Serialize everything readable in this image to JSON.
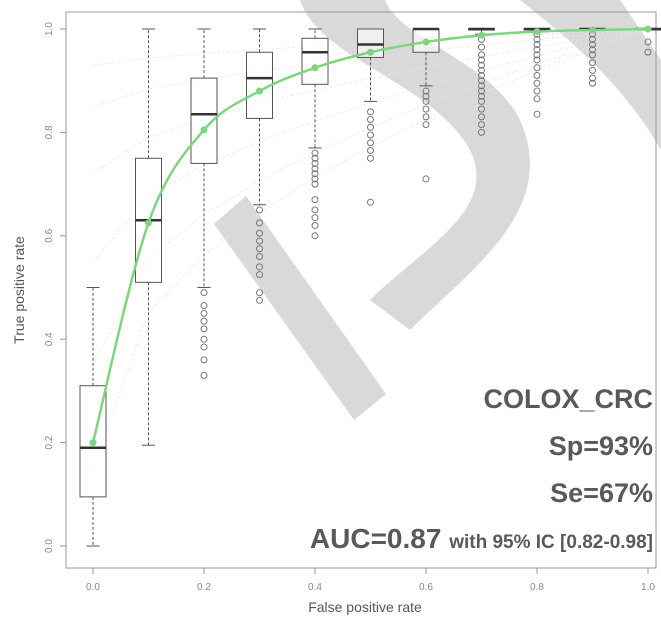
{
  "chart_data": {
    "type": "box",
    "xlabel": "False positive rate",
    "ylabel": "True positive rate",
    "xlim": [
      0,
      1
    ],
    "ylim": [
      0,
      1
    ],
    "xticks": [
      "0.0",
      "0.2",
      "0.4",
      "0.6",
      "0.8",
      "1.0"
    ],
    "yticks": [
      "0.0",
      "0.2",
      "0.4",
      "0.6",
      "0.8",
      "1.0"
    ],
    "grid": false,
    "boxes": [
      {
        "x": 0.0,
        "min": 0.0,
        "q1": 0.095,
        "median": 0.19,
        "q3": 0.31,
        "max": 0.5,
        "outliers": []
      },
      {
        "x": 0.1,
        "min": 0.195,
        "q1": 0.51,
        "median": 0.63,
        "q3": 0.75,
        "max": 1.0,
        "outliers": []
      },
      {
        "x": 0.2,
        "min": 0.5,
        "q1": 0.74,
        "median": 0.835,
        "q3": 0.905,
        "max": 1.0,
        "outliers": [
          0.49,
          0.465,
          0.45,
          0.435,
          0.42,
          0.4,
          0.385,
          0.36,
          0.33
        ]
      },
      {
        "x": 0.3,
        "min": 0.66,
        "q1": 0.827,
        "median": 0.905,
        "q3": 0.955,
        "max": 1.0,
        "outliers": [
          0.65,
          0.625,
          0.605,
          0.59,
          0.575,
          0.56,
          0.54,
          0.525,
          0.49,
          0.475
        ]
      },
      {
        "x": 0.4,
        "min": 0.77,
        "q1": 0.893,
        "median": 0.955,
        "q3": 0.982,
        "max": 1.0,
        "outliers": [
          0.76,
          0.75,
          0.74,
          0.73,
          0.72,
          0.71,
          0.7,
          0.67,
          0.65,
          0.635,
          0.62,
          0.6
        ]
      },
      {
        "x": 0.5,
        "min": 0.86,
        "q1": 0.945,
        "median": 0.97,
        "q3": 1.0,
        "max": 1.0,
        "outliers": [
          0.84,
          0.825,
          0.81,
          0.795,
          0.78,
          0.765,
          0.75,
          0.665
        ]
      },
      {
        "x": 0.6,
        "min": 0.89,
        "q1": 0.955,
        "median": 1.0,
        "q3": 1.0,
        "max": 1.0,
        "outliers": [
          0.88,
          0.87,
          0.86,
          0.845,
          0.83,
          0.815,
          0.71
        ]
      },
      {
        "x": 0.7,
        "min": 0.99,
        "q1": 1.0,
        "median": 1.0,
        "q3": 1.0,
        "max": 1.0,
        "outliers": [
          0.98,
          0.965,
          0.95,
          0.94,
          0.93,
          0.92,
          0.91,
          0.9,
          0.89,
          0.88,
          0.87,
          0.86,
          0.845,
          0.83,
          0.815,
          0.8
        ]
      },
      {
        "x": 0.8,
        "min": 1.0,
        "q1": 1.0,
        "median": 1.0,
        "q3": 1.0,
        "max": 1.0,
        "outliers": [
          0.99,
          0.98,
          0.97,
          0.96,
          0.95,
          0.94,
          0.925,
          0.91,
          0.895,
          0.88,
          0.865,
          0.835
        ]
      },
      {
        "x": 0.9,
        "min": 1.0,
        "q1": 1.0,
        "median": 1.0,
        "q3": 1.0,
        "max": 1.0,
        "outliers": [
          0.99,
          0.98,
          0.97,
          0.96,
          0.95,
          0.935,
          0.92,
          0.905,
          0.895
        ]
      },
      {
        "x": 1.0,
        "min": 1.0,
        "q1": 1.0,
        "median": 1.0,
        "q3": 1.0,
        "max": 1.0,
        "outliers": [
          0.975,
          0.955
        ]
      }
    ],
    "roc_curve": {
      "color": "#7fd47f",
      "x": [
        0.0,
        0.1,
        0.2,
        0.3,
        0.4,
        0.5,
        0.6,
        0.7,
        0.8,
        0.9,
        1.0
      ],
      "y": [
        0.2,
        0.625,
        0.805,
        0.88,
        0.925,
        0.955,
        0.975,
        0.988,
        0.995,
        0.998,
        1.0
      ]
    },
    "annotations": {
      "name": "COLOX_CRC",
      "sp": "Sp=93%",
      "se": "Se=67%",
      "auc": "AUC=0.87",
      "ci": "with 95% IC [0.82-0.98]"
    },
    "colors": {
      "box": "#555555",
      "outlier": "#777777",
      "axis": "#999999",
      "annotation_text": "#595959",
      "watermark": "#d9d9d9"
    }
  }
}
